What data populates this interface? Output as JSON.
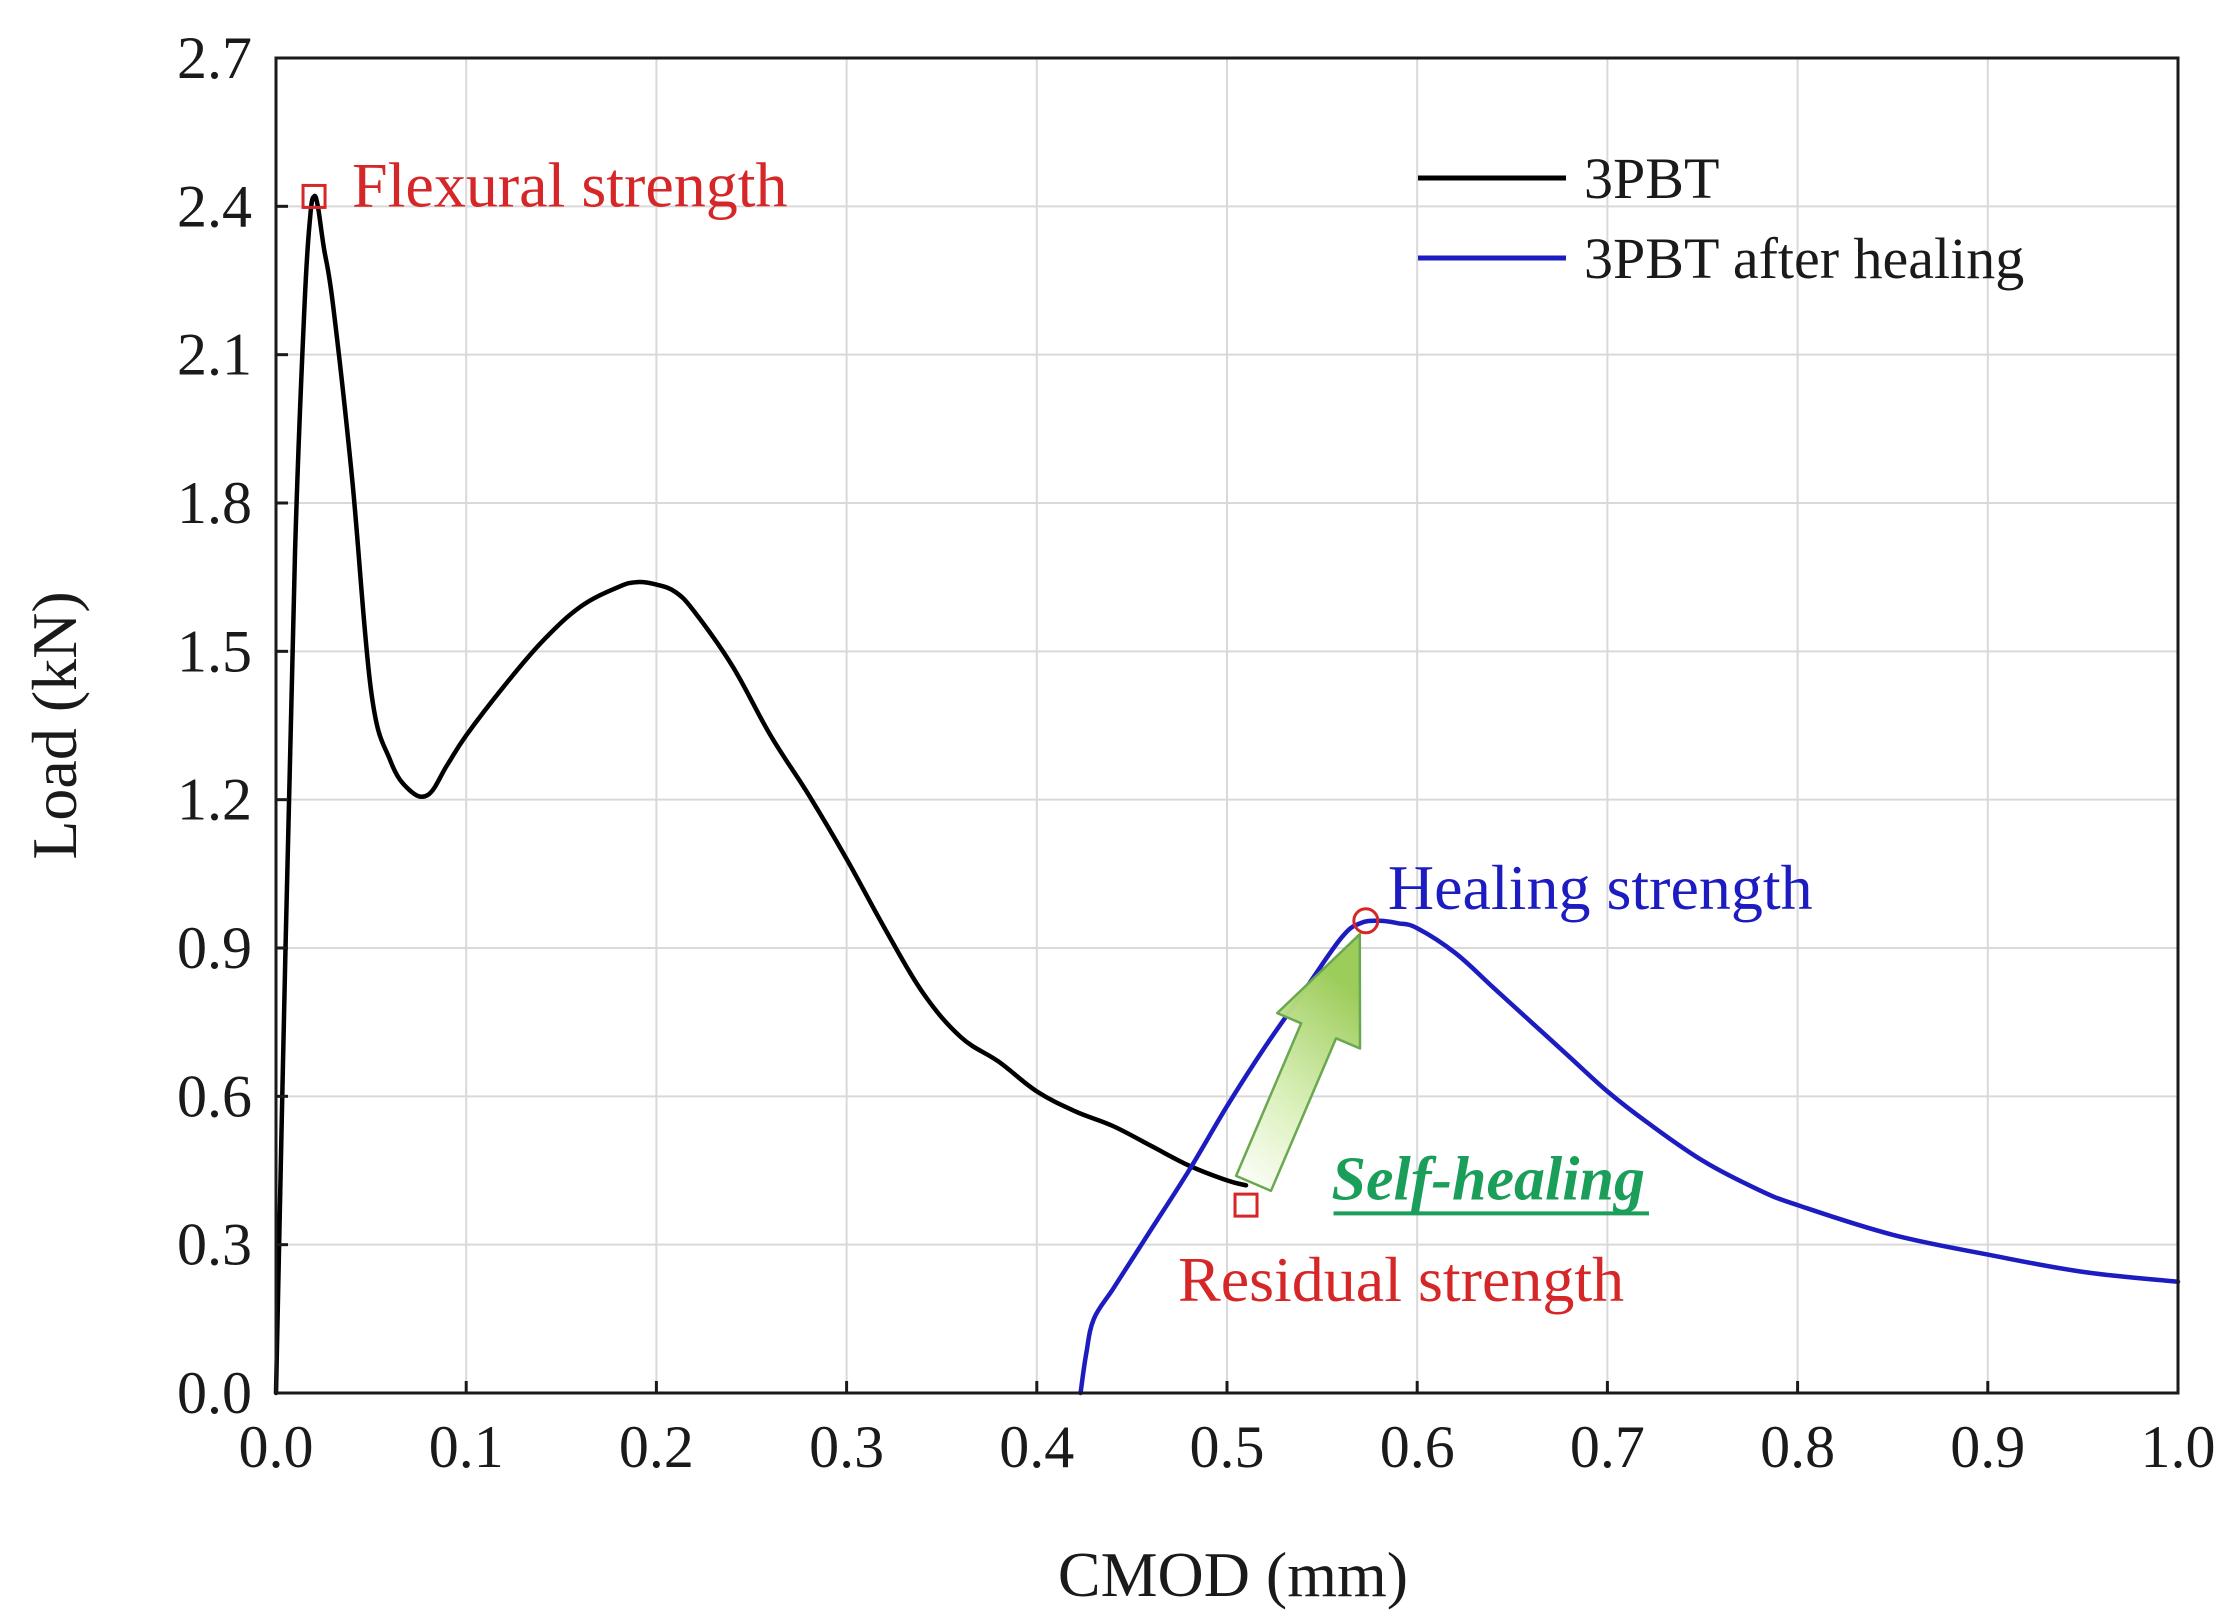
{
  "chart_data": {
    "type": "line",
    "title": "",
    "xlabel": "CMOD  (mm)",
    "ylabel": "Load  (kN)",
    "xlim": [
      0.0,
      1.0
    ],
    "ylim": [
      0.0,
      2.7
    ],
    "grid": true,
    "legend_position": "top-right",
    "x_ticks": [
      0.0,
      0.1,
      0.2,
      0.3,
      0.4,
      0.5,
      0.6,
      0.7,
      0.8,
      0.9,
      1.0
    ],
    "x_tick_labels": [
      "0.0",
      "0.1",
      "0.2",
      "0.3",
      "0.4",
      "0.5",
      "0.6",
      "0.7",
      "0.8",
      "0.9",
      "1.0"
    ],
    "y_ticks": [
      0.0,
      0.3,
      0.6,
      0.9,
      1.2,
      1.5,
      1.8,
      2.1,
      2.4,
      2.7
    ],
    "y_tick_labels": [
      "0.0",
      "0.3",
      "0.6",
      "0.9",
      "1.2",
      "1.5",
      "1.8",
      "2.1",
      "2.4",
      "2.7"
    ],
    "series": [
      {
        "name": "3PBT",
        "color": "#000000",
        "x": [
          0.0,
          0.005,
          0.01,
          0.015,
          0.018,
          0.02,
          0.022,
          0.025,
          0.03,
          0.04,
          0.05,
          0.06,
          0.07,
          0.08,
          0.09,
          0.1,
          0.12,
          0.14,
          0.16,
          0.18,
          0.19,
          0.2,
          0.21,
          0.22,
          0.24,
          0.26,
          0.28,
          0.3,
          0.32,
          0.34,
          0.36,
          0.38,
          0.4,
          0.42,
          0.44,
          0.46,
          0.48,
          0.5,
          0.51
        ],
        "y": [
          0.0,
          0.9,
          1.7,
          2.2,
          2.38,
          2.42,
          2.4,
          2.32,
          2.2,
          1.85,
          1.42,
          1.28,
          1.22,
          1.21,
          1.27,
          1.33,
          1.43,
          1.52,
          1.59,
          1.63,
          1.64,
          1.635,
          1.62,
          1.58,
          1.47,
          1.33,
          1.21,
          1.08,
          0.94,
          0.81,
          0.72,
          0.67,
          0.61,
          0.57,
          0.54,
          0.5,
          0.46,
          0.43,
          0.42
        ]
      },
      {
        "name": "3PBT after healing",
        "color": "#1c1cc0",
        "x": [
          0.423,
          0.426,
          0.43,
          0.44,
          0.45,
          0.46,
          0.48,
          0.5,
          0.52,
          0.54,
          0.56,
          0.57,
          0.58,
          0.59,
          0.6,
          0.62,
          0.64,
          0.66,
          0.68,
          0.7,
          0.72,
          0.75,
          0.78,
          0.8,
          0.85,
          0.9,
          0.95,
          1.0
        ],
        "y": [
          0.0,
          0.08,
          0.15,
          0.21,
          0.27,
          0.33,
          0.45,
          0.58,
          0.7,
          0.81,
          0.92,
          0.95,
          0.955,
          0.95,
          0.94,
          0.89,
          0.82,
          0.75,
          0.68,
          0.61,
          0.55,
          0.47,
          0.41,
          0.38,
          0.32,
          0.28,
          0.245,
          0.225
        ]
      }
    ],
    "annotations": [
      {
        "text": "Flexural strength",
        "color": "#d62728",
        "x": 0.02,
        "y": 2.42,
        "marker": "square"
      },
      {
        "text": "Healing strength",
        "color": "#1c1cc0",
        "x": 0.573,
        "y": 0.955,
        "marker": "circle"
      },
      {
        "text": "Residual strength",
        "color": "#d62728",
        "x": 0.51,
        "y": 0.38,
        "marker": "square"
      },
      {
        "text": "Self-healing",
        "color": "#1a9e5a",
        "x": 0.515,
        "y": 0.42,
        "arrow_to": [
          0.573,
          0.94
        ]
      }
    ]
  }
}
